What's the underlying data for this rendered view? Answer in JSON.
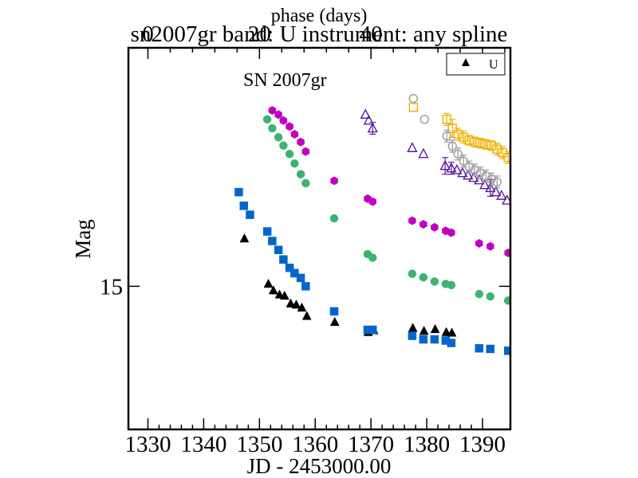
{
  "chart_data": {
    "type": "scatter",
    "title": "sn2007gr band: U instrument: any spline",
    "xlabel": "JD - 2453000.00",
    "ylabel": "Mag",
    "top_axis_label": "phase (days)",
    "annotation": "SN 2007gr",
    "xlim": [
      1326.5,
      1395
    ],
    "ylim": [
      17.4,
      11.0
    ],
    "x_ticks": [
      1330,
      1340,
      1350,
      1360,
      1370,
      1380,
      1390
    ],
    "x_tick_labels": [
      "1330",
      "1340",
      "1350",
      "1360",
      "1370",
      "1380",
      "1390"
    ],
    "y_ticks": [
      15
    ],
    "y_tick_labels": [
      "15"
    ],
    "phase_zero_jd": 1330,
    "phase_ticks": [
      0,
      20,
      40
    ],
    "phase_tick_labels": [
      "0",
      "20",
      "40"
    ],
    "legend": {
      "placement": "top-right",
      "entries": [
        {
          "label": "U",
          "series": "U"
        }
      ]
    },
    "series": [
      {
        "name": "U",
        "marker": "filled-triangle",
        "color": "#000000",
        "x": [
          1347.3,
          1351.6,
          1352.5,
          1353.6,
          1354.5,
          1355.6,
          1356.6,
          1357.6,
          1358.5,
          1363.5,
          1369.5,
          1370.5,
          1377.5,
          1379.5,
          1381.5,
          1383.5,
          1384.5
        ],
        "y": [
          14.2,
          14.96,
          15.07,
          15.14,
          15.16,
          15.29,
          15.31,
          15.36,
          15.5,
          15.6,
          15.77,
          15.74,
          15.7,
          15.75,
          15.72,
          15.77,
          15.78
        ]
      },
      {
        "marker": "filled-square",
        "color": "#0066cc",
        "x": [
          1346.3,
          1347.2,
          1348.3,
          1351.4,
          1352.3,
          1353.4,
          1354.3,
          1355.4,
          1356.3,
          1357.4,
          1358.3,
          1363.4,
          1369.4,
          1370.3,
          1377.4,
          1379.4,
          1381.4,
          1383.4,
          1384.4,
          1389.4,
          1391.4,
          1394.6
        ],
        "y": [
          13.42,
          13.65,
          13.8,
          14.08,
          14.24,
          14.39,
          14.55,
          14.69,
          14.78,
          14.86,
          15.0,
          15.42,
          15.73,
          15.73,
          15.83,
          15.89,
          15.89,
          15.91,
          15.95,
          16.04,
          16.05,
          16.08
        ]
      },
      {
        "marker": "filled-circle",
        "color": "#3cb371",
        "x": [
          1351.4,
          1352.3,
          1353.4,
          1354.3,
          1355.4,
          1356.3,
          1357.4,
          1358.3,
          1363.4,
          1369.4,
          1370.3,
          1377.4,
          1379.4,
          1381.4,
          1383.4,
          1384.4,
          1389.4,
          1391.4,
          1394.6
        ],
        "y": [
          12.2,
          12.35,
          12.5,
          12.64,
          12.78,
          12.94,
          13.12,
          13.27,
          13.86,
          14.46,
          14.52,
          14.79,
          14.85,
          14.92,
          14.96,
          14.98,
          15.13,
          15.17,
          15.24
        ]
      },
      {
        "marker": "filled-hexagon",
        "color": "#c000c0",
        "x": [
          1352.3,
          1353.4,
          1354.3,
          1355.4,
          1356.3,
          1357.4,
          1358.3,
          1363.4,
          1369.4,
          1370.3,
          1377.4,
          1379.4,
          1381.4,
          1383.4,
          1384.4,
          1389.4,
          1391.4,
          1394.6
        ],
        "y": [
          12.05,
          12.12,
          12.22,
          12.32,
          12.45,
          12.58,
          12.74,
          13.23,
          13.53,
          13.58,
          13.9,
          13.96,
          14.01,
          14.07,
          14.1,
          14.28,
          14.33,
          14.44
        ]
      },
      {
        "marker": "open-triangle",
        "color": "#5a1b9e",
        "x": [
          1369.0,
          1369.6,
          1370.3,
          1377.4,
          1379.4,
          1383.3,
          1384.4,
          1385.4,
          1386.4,
          1387.4,
          1388.4,
          1389.4,
          1390.4,
          1391.4,
          1392.4,
          1393.4,
          1394.4
        ],
        "y": [
          12.12,
          12.22,
          12.35,
          12.68,
          12.78,
          12.98,
          13.02,
          13.05,
          13.1,
          13.14,
          13.18,
          13.22,
          13.3,
          13.35,
          13.42,
          13.48,
          13.56
        ],
        "error": [
          0,
          0,
          0.1,
          0,
          0,
          0.14,
          0.1,
          0,
          0,
          0,
          0,
          0,
          0,
          0.14,
          0,
          0,
          0
        ]
      },
      {
        "marker": "open-square",
        "color": "#f0b000",
        "x": [
          1377.6,
          1383.6,
          1384.6,
          1385.6,
          1386.6,
          1387.6,
          1388.6,
          1389.6,
          1390.6,
          1391.6,
          1392.6,
          1393.6,
          1394.6
        ],
        "y": [
          12.0,
          12.2,
          12.35,
          12.45,
          12.5,
          12.55,
          12.58,
          12.6,
          12.62,
          12.64,
          12.7,
          12.76,
          12.84
        ],
        "error": [
          0,
          0.1,
          0.15,
          0.1,
          0.1,
          0.08,
          0.08,
          0.08,
          0.08,
          0.08,
          0.1,
          0.1,
          0.1
        ]
      },
      {
        "marker": "open-circle",
        "color": "#999999",
        "x": [
          1377.6,
          1379.6,
          1383.6,
          1384.6,
          1385.6,
          1386.6,
          1387.6,
          1388.6,
          1389.6,
          1390.6,
          1391.6,
          1392.6
        ],
        "y": [
          11.85,
          12.2,
          12.48,
          12.65,
          12.78,
          12.9,
          13.0,
          13.05,
          13.1,
          13.15,
          13.2,
          13.25
        ],
        "error": [
          0,
          0,
          0.1,
          0.1,
          0.1,
          0.1,
          0.1,
          0.1,
          0.1,
          0.1,
          0.1,
          0.1
        ]
      }
    ]
  }
}
